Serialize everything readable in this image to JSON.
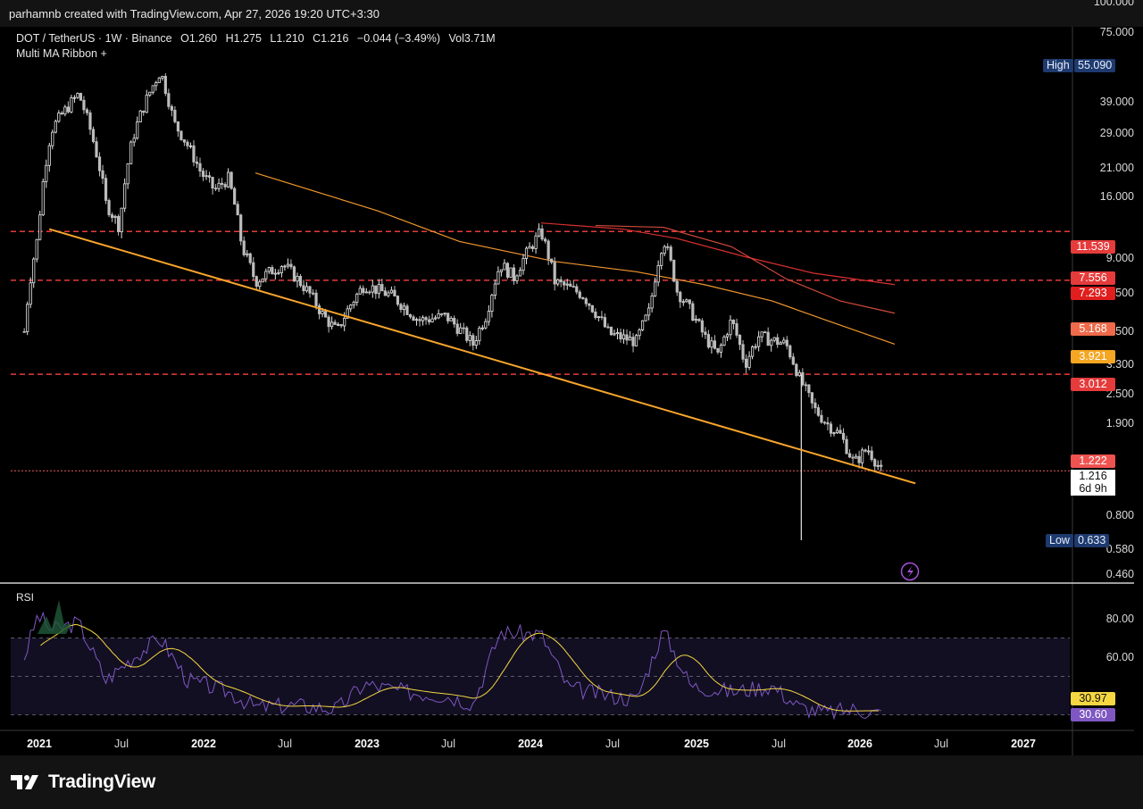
{
  "header": {
    "attribution": "parhamnb created with TradingView.com, Apr 27, 2026 19:20 UTC+3:30"
  },
  "legend": {
    "symbol": "DOT / TetherUS · 1W · Binance",
    "open": "O1.260",
    "high": "H1.275",
    "low": "L1.210",
    "close": "C1.216",
    "change": "−0.044 (−3.49%)",
    "volume": "Vol3.71M",
    "indicator": "Multi MA Ribbon +"
  },
  "rsi_label": "RSI",
  "brand": "TradingView",
  "colors": {
    "trendline": "#f7a52b",
    "level_line": "#e53b3b",
    "candle": "#e6e6e6",
    "rsi_line": "#7e57c2",
    "rsi_ma": "#f5d742",
    "ma_orange": "#f0962e",
    "ma_red": "#d93030",
    "ma_darkred": "#c42828"
  },
  "price_axis_ticks": [
    "100.000",
    "75.000",
    "39.000",
    "29.000",
    "21.000",
    "16.000",
    "9.000",
    "6.500",
    "4.500",
    "3.300",
    "2.500",
    "1.900",
    "0.800",
    "0.580",
    "0.460"
  ],
  "rsi_axis_ticks": [
    "80.00",
    "60.00"
  ],
  "time_axis": [
    {
      "label": "2021",
      "bold": true
    },
    {
      "label": "Jul",
      "bold": false
    },
    {
      "label": "2022",
      "bold": true
    },
    {
      "label": "Jul",
      "bold": false
    },
    {
      "label": "2023",
      "bold": true
    },
    {
      "label": "Jul",
      "bold": false
    },
    {
      "label": "2024",
      "bold": true
    },
    {
      "label": "Jul",
      "bold": false
    },
    {
      "label": "2025",
      "bold": true
    },
    {
      "label": "Jul",
      "bold": false
    },
    {
      "label": "2026",
      "bold": true
    },
    {
      "label": "Jul",
      "bold": false
    },
    {
      "label": "2027",
      "bold": true
    }
  ],
  "price_tags": [
    {
      "value": "11.539",
      "color": "#e53b3b"
    },
    {
      "value": "7.556",
      "color": "#e53b3b"
    },
    {
      "value": "7.293",
      "color": "#e01e1e"
    },
    {
      "value": "5.168",
      "color": "#ef6a4a"
    },
    {
      "value": "3.921",
      "color": "#f5a623"
    },
    {
      "value": "3.012",
      "color": "#e53b3b"
    },
    {
      "value": "1.222",
      "color": "#ef5350"
    },
    {
      "value": "1.216",
      "color": "#ffffff"
    },
    {
      "value": "6d 9h",
      "color": "#ffffff"
    }
  ],
  "high_label": {
    "label": "High",
    "value": "55.090"
  },
  "low_label": {
    "label": "Low",
    "value": "0.633"
  },
  "rsi_tags": [
    {
      "value": "30.97",
      "color": "#f5d742"
    },
    {
      "value": "30.60",
      "color": "#7e57c2"
    }
  ],
  "chart_data": {
    "type": "candlestick",
    "symbol": "DOT / TetherUS",
    "timeframe": "1W",
    "price_scale": "log",
    "ylim": [
      0.46,
      100
    ],
    "last_price": 1.216,
    "horizontal_levels": [
      11.539,
      7.293,
      3.012,
      1.216
    ],
    "trendline": {
      "from": [
        "2021-01",
        11.8
      ],
      "to": [
        "2026-06",
        1.08
      ]
    },
    "price_path": [
      [
        "2021-01",
        4.5
      ],
      [
        "2021-02",
        11
      ],
      [
        "2021-03",
        30
      ],
      [
        "2021-05",
        42
      ],
      [
        "2021-06",
        28
      ],
      [
        "2021-07",
        15
      ],
      [
        "2021-08",
        12
      ],
      [
        "2021-09",
        28
      ],
      [
        "2021-10",
        40
      ],
      [
        "2021-11",
        52
      ],
      [
        "2021-12",
        32
      ],
      [
        "2022-02",
        20
      ],
      [
        "2022-03",
        17
      ],
      [
        "2022-04",
        19
      ],
      [
        "2022-05",
        10
      ],
      [
        "2022-06",
        7.2
      ],
      [
        "2022-08",
        8.5
      ],
      [
        "2022-10",
        6.4
      ],
      [
        "2022-11",
        5.2
      ],
      [
        "2022-12",
        4.5
      ],
      [
        "2023-01",
        5.8
      ],
      [
        "2023-02",
        7.0
      ],
      [
        "2023-04",
        6.3
      ],
      [
        "2023-06",
        5.0
      ],
      [
        "2023-08",
        5.2
      ],
      [
        "2023-10",
        4.0
      ],
      [
        "2023-11",
        5.3
      ],
      [
        "2023-12",
        8.5
      ],
      [
        "2024-01",
        7.5
      ],
      [
        "2024-03",
        11.5
      ],
      [
        "2024-04",
        7.2
      ],
      [
        "2024-06",
        6.4
      ],
      [
        "2024-08",
        4.4
      ],
      [
        "2024-10",
        4.1
      ],
      [
        "2024-11",
        5.5
      ],
      [
        "2024-12",
        10.8
      ],
      [
        "2025-01",
        6.6
      ],
      [
        "2025-03",
        4.3
      ],
      [
        "2025-04",
        3.6
      ],
      [
        "2025-05",
        5.0
      ],
      [
        "2025-06",
        3.3
      ],
      [
        "2025-07",
        4.3
      ],
      [
        "2025-09",
        4.0
      ],
      [
        "2025-10",
        2.9
      ],
      [
        "2025-11",
        2.2
      ],
      [
        "2025-12",
        1.9
      ],
      [
        "2026-01",
        1.7
      ],
      [
        "2026-02",
        1.3
      ],
      [
        "2026-03",
        1.5
      ],
      [
        "2026-04",
        1.216
      ]
    ],
    "rsi": {
      "levels": [
        70,
        50,
        30
      ],
      "last_rsi": 30.6,
      "last_ma": 30.97,
      "path": [
        [
          "2021-01",
          60
        ],
        [
          "2021-02",
          82
        ],
        [
          "2021-03",
          74
        ],
        [
          "2021-05",
          78
        ],
        [
          "2021-07",
          48
        ],
        [
          "2021-09",
          60
        ],
        [
          "2021-11",
          70
        ],
        [
          "2022-01",
          48
        ],
        [
          "2022-04",
          42
        ],
        [
          "2022-06",
          34
        ],
        [
          "2022-09",
          35
        ],
        [
          "2022-12",
          33
        ],
        [
          "2023-02",
          46
        ],
        [
          "2023-05",
          42
        ],
        [
          "2023-08",
          40
        ],
        [
          "2023-10",
          36
        ],
        [
          "2023-12",
          73
        ],
        [
          "2024-03",
          72
        ],
        [
          "2024-05",
          44
        ],
        [
          "2024-08",
          40
        ],
        [
          "2024-10",
          38
        ],
        [
          "2024-12",
          74
        ],
        [
          "2025-02",
          45
        ],
        [
          "2025-05",
          42
        ],
        [
          "2025-08",
          45
        ],
        [
          "2025-10",
          34
        ],
        [
          "2025-12",
          31
        ],
        [
          "2026-02",
          33
        ],
        [
          "2026-04",
          30.6
        ]
      ]
    }
  }
}
